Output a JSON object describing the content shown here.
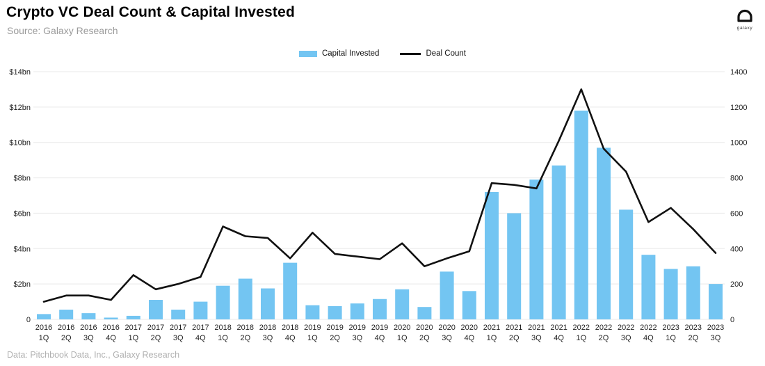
{
  "header": {
    "title": "Crypto VC Deal Count & Capital Invested",
    "subtitle": "Source: Galaxy Research",
    "logo_text": "galaxy"
  },
  "legend": {
    "capital_invested_label": "Capital Invested",
    "deal_count_label": "Deal Count"
  },
  "footer": {
    "source_note": "Data: Pitchbook Data, Inc., Galaxy Research"
  },
  "colors": {
    "bar": "#73C5F2",
    "line": "#111111",
    "grid": "#e9e9e9",
    "axis_text": "#222222",
    "subtitle_gray": "#9a9a9a",
    "footer_gray": "#b1b1b1"
  },
  "chart_data": {
    "type": "bar",
    "subtype": "bar+line combo, dual axis",
    "title": "Crypto VC Deal Count & Capital Invested",
    "categories": [
      "2016 1Q",
      "2016 2Q",
      "2016 3Q",
      "2016 4Q",
      "2017 1Q",
      "2017 2Q",
      "2017 3Q",
      "2017 4Q",
      "2018 1Q",
      "2018 2Q",
      "2018 3Q",
      "2018 4Q",
      "2019 1Q",
      "2019 2Q",
      "2019 3Q",
      "2019 4Q",
      "2020 1Q",
      "2020 2Q",
      "2020 3Q",
      "2020 4Q",
      "2021 1Q",
      "2021 2Q",
      "2021 3Q",
      "2021 4Q",
      "2022 1Q",
      "2022 2Q",
      "2022 3Q",
      "2022 4Q",
      "2023 1Q",
      "2023 2Q",
      "2023 3Q"
    ],
    "series": [
      {
        "name": "Capital Invested",
        "type": "bar",
        "axis": "left",
        "unit": "$bn",
        "values": [
          0.3,
          0.55,
          0.35,
          0.1,
          0.2,
          1.1,
          0.55,
          1.0,
          1.9,
          2.3,
          1.75,
          3.2,
          0.8,
          0.75,
          0.9,
          1.15,
          1.7,
          0.7,
          2.7,
          1.6,
          7.2,
          6.0,
          7.9,
          8.7,
          11.8,
          9.7,
          6.2,
          3.65,
          2.85,
          3.0,
          2.0
        ]
      },
      {
        "name": "Deal Count",
        "type": "line",
        "axis": "right",
        "unit": "deals",
        "values": [
          100,
          135,
          135,
          110,
          250,
          170,
          200,
          240,
          525,
          470,
          460,
          345,
          490,
          370,
          355,
          340,
          430,
          300,
          345,
          385,
          770,
          760,
          740,
          1010,
          1300,
          965,
          835,
          550,
          630,
          510,
          375
        ]
      }
    ],
    "left_axis": {
      "min": 0,
      "max": 14,
      "step": 2,
      "tick_labels": [
        "0",
        "$2bn",
        "$4bn",
        "$6bn",
        "$8bn",
        "$10bn",
        "$12bn",
        "$14bn"
      ]
    },
    "right_axis": {
      "min": 0,
      "max": 1400,
      "step": 200,
      "tick_labels": [
        "0",
        "200",
        "400",
        "600",
        "800",
        "1000",
        "1200",
        "1400"
      ]
    },
    "grid": true,
    "legend_position": "top-center"
  }
}
